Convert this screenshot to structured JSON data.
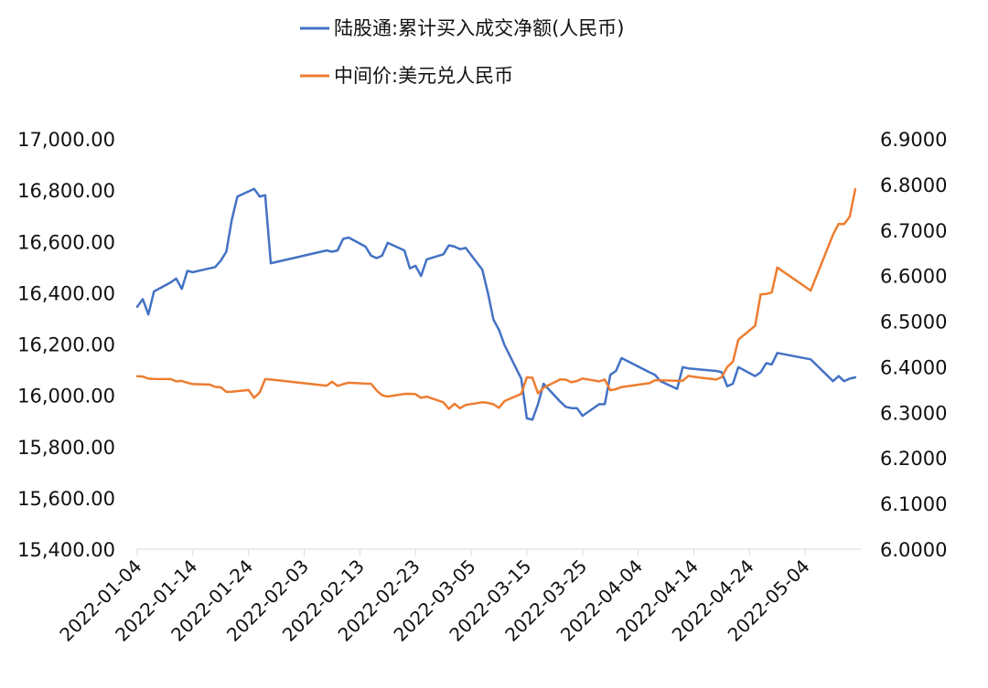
{
  "chart_data": {
    "type": "line",
    "title": "",
    "legend_position": "top",
    "grid": false,
    "x_ticks": [
      "2022-01-04",
      "2022-01-14",
      "2022-01-24",
      "2022-02-03",
      "2022-02-13",
      "2022-02-23",
      "2022-03-05",
      "2022-03-15",
      "2022-03-25",
      "2022-04-04",
      "2022-04-14",
      "2022-04-24",
      "2022-05-04"
    ],
    "x_range": [
      "2022-01-04",
      "2022-05-14"
    ],
    "y_left": {
      "range": [
        15400,
        17000
      ],
      "ticks": [
        "15,400.00",
        "15,600.00",
        "15,800.00",
        "16,000.00",
        "16,200.00",
        "16,400.00",
        "16,600.00",
        "16,800.00",
        "17,000.00"
      ]
    },
    "y_right": {
      "range": [
        6.0,
        6.9
      ],
      "ticks": [
        "6.0000",
        "6.1000",
        "6.2000",
        "6.3000",
        "6.4000",
        "6.5000",
        "6.6000",
        "6.7000",
        "6.8000",
        "6.9000"
      ]
    },
    "series": [
      {
        "name": "陆股通:累计买入成交净额(人民币)",
        "color": "#4472C4",
        "axis": "left",
        "points": [
          [
            "2022-01-04",
            16345
          ],
          [
            "2022-01-05",
            16375
          ],
          [
            "2022-01-06",
            16315
          ],
          [
            "2022-01-07",
            16405
          ],
          [
            "2022-01-10",
            16440
          ],
          [
            "2022-01-11",
            16455
          ],
          [
            "2022-01-12",
            16415
          ],
          [
            "2022-01-13",
            16485
          ],
          [
            "2022-01-14",
            16480
          ],
          [
            "2022-01-17",
            16495
          ],
          [
            "2022-01-18",
            16500
          ],
          [
            "2022-01-19",
            16525
          ],
          [
            "2022-01-20",
            16560
          ],
          [
            "2022-01-21",
            16685
          ],
          [
            "2022-01-22",
            16775
          ],
          [
            "2022-01-24",
            16795
          ],
          [
            "2022-01-25",
            16805
          ],
          [
            "2022-01-26",
            16775
          ],
          [
            "2022-01-27",
            16780
          ],
          [
            "2022-01-28",
            16515
          ],
          [
            "2022-02-07",
            16565
          ],
          [
            "2022-02-08",
            16560
          ],
          [
            "2022-02-09",
            16565
          ],
          [
            "2022-02-10",
            16610
          ],
          [
            "2022-02-11",
            16615
          ],
          [
            "2022-02-14",
            16580
          ],
          [
            "2022-02-15",
            16545
          ],
          [
            "2022-02-16",
            16535
          ],
          [
            "2022-02-17",
            16545
          ],
          [
            "2022-02-18",
            16595
          ],
          [
            "2022-02-21",
            16565
          ],
          [
            "2022-02-22",
            16495
          ],
          [
            "2022-02-23",
            16505
          ],
          [
            "2022-02-24",
            16465
          ],
          [
            "2022-02-25",
            16530
          ],
          [
            "2022-02-28",
            16550
          ],
          [
            "2022-03-01",
            16585
          ],
          [
            "2022-03-02",
            16580
          ],
          [
            "2022-03-03",
            16570
          ],
          [
            "2022-03-04",
            16575
          ],
          [
            "2022-03-07",
            16490
          ],
          [
            "2022-03-08",
            16400
          ],
          [
            "2022-03-09",
            16295
          ],
          [
            "2022-03-10",
            16255
          ],
          [
            "2022-03-11",
            16195
          ],
          [
            "2022-03-14",
            16065
          ],
          [
            "2022-03-15",
            15910
          ],
          [
            "2022-03-16",
            15905
          ],
          [
            "2022-03-17",
            15965
          ],
          [
            "2022-03-18",
            16045
          ],
          [
            "2022-03-21",
            15975
          ],
          [
            "2022-03-22",
            15955
          ],
          [
            "2022-03-23",
            15950
          ],
          [
            "2022-03-24",
            15950
          ],
          [
            "2022-03-25",
            15920
          ],
          [
            "2022-03-28",
            15965
          ],
          [
            "2022-03-29",
            15965
          ],
          [
            "2022-03-30",
            16080
          ],
          [
            "2022-03-31",
            16095
          ],
          [
            "2022-04-01",
            16145
          ],
          [
            "2022-04-06",
            16090
          ],
          [
            "2022-04-07",
            16080
          ],
          [
            "2022-04-08",
            16055
          ],
          [
            "2022-04-11",
            16025
          ],
          [
            "2022-04-12",
            16110
          ],
          [
            "2022-04-13",
            16105
          ],
          [
            "2022-04-18",
            16095
          ],
          [
            "2022-04-19",
            16090
          ],
          [
            "2022-04-20",
            16035
          ],
          [
            "2022-04-21",
            16045
          ],
          [
            "2022-04-22",
            16110
          ],
          [
            "2022-04-25",
            16075
          ],
          [
            "2022-04-26",
            16090
          ],
          [
            "2022-04-27",
            16125
          ],
          [
            "2022-04-28",
            16120
          ],
          [
            "2022-04-29",
            16165
          ],
          [
            "2022-05-05",
            16140
          ],
          [
            "2022-05-09",
            16055
          ],
          [
            "2022-05-10",
            16075
          ],
          [
            "2022-05-11",
            16055
          ],
          [
            "2022-05-12",
            16065
          ],
          [
            "2022-05-13",
            16070
          ]
        ]
      },
      {
        "name": "中间价:美元兑人民币",
        "color": "#ED7D31",
        "axis": "right",
        "points": [
          [
            "2022-01-04",
            6.3794
          ],
          [
            "2022-01-05",
            6.3786
          ],
          [
            "2022-01-06",
            6.374
          ],
          [
            "2022-01-07",
            6.3735
          ],
          [
            "2022-01-10",
            6.373
          ],
          [
            "2022-01-11",
            6.368
          ],
          [
            "2022-01-12",
            6.369
          ],
          [
            "2022-01-13",
            6.365
          ],
          [
            "2022-01-14",
            6.362
          ],
          [
            "2022-01-17",
            6.361
          ],
          [
            "2022-01-18",
            6.356
          ],
          [
            "2022-01-19",
            6.355
          ],
          [
            "2022-01-20",
            6.345
          ],
          [
            "2022-01-21",
            6.3453
          ],
          [
            "2022-01-24",
            6.349
          ],
          [
            "2022-01-25",
            6.332
          ],
          [
            "2022-01-26",
            6.3437
          ],
          [
            "2022-01-27",
            6.373
          ],
          [
            "2022-01-28",
            6.372
          ],
          [
            "2022-02-07",
            6.3586
          ],
          [
            "2022-02-08",
            6.3672
          ],
          [
            "2022-02-09",
            6.358
          ],
          [
            "2022-02-10",
            6.362
          ],
          [
            "2022-02-11",
            6.365
          ],
          [
            "2022-02-14",
            6.3631
          ],
          [
            "2022-02-15",
            6.3628
          ],
          [
            "2022-02-16",
            6.3481
          ],
          [
            "2022-02-17",
            6.3375
          ],
          [
            "2022-02-18",
            6.3347
          ],
          [
            "2022-02-21",
            6.3405
          ],
          [
            "2022-02-22",
            6.3408
          ],
          [
            "2022-02-23",
            6.34
          ],
          [
            "2022-02-24",
            6.332
          ],
          [
            "2022-02-25",
            6.3346
          ],
          [
            "2022-02-28",
            6.3222
          ],
          [
            "2022-03-01",
            6.3076
          ],
          [
            "2022-03-02",
            6.319
          ],
          [
            "2022-03-03",
            6.309
          ],
          [
            "2022-03-04",
            6.3164
          ],
          [
            "2022-03-07",
            6.3222
          ],
          [
            "2022-03-08",
            6.321
          ],
          [
            "2022-03-09",
            6.3178
          ],
          [
            "2022-03-10",
            6.3101
          ],
          [
            "2022-03-11",
            6.325
          ],
          [
            "2022-03-14",
            6.3406
          ],
          [
            "2022-03-15",
            6.3768
          ],
          [
            "2022-03-16",
            6.376
          ],
          [
            "2022-03-17",
            6.3416
          ],
          [
            "2022-03-18",
            6.354
          ],
          [
            "2022-03-21",
            6.3723
          ],
          [
            "2022-03-22",
            6.3718
          ],
          [
            "2022-03-23",
            6.366
          ],
          [
            "2022-03-24",
            6.3688
          ],
          [
            "2022-03-25",
            6.3742
          ],
          [
            "2022-03-28",
            6.3681
          ],
          [
            "2022-03-29",
            6.372
          ],
          [
            "2022-03-30",
            6.3486
          ],
          [
            "2022-03-31",
            6.3509
          ],
          [
            "2022-04-01",
            6.3556
          ],
          [
            "2022-04-06",
            6.3641
          ],
          [
            "2022-04-07",
            6.3703
          ],
          [
            "2022-04-08",
            6.3703
          ],
          [
            "2022-04-11",
            6.3693
          ],
          [
            "2022-04-12",
            6.3695
          ],
          [
            "2022-04-13",
            6.38
          ],
          [
            "2022-04-14",
            6.378
          ],
          [
            "2022-04-18",
            6.372
          ],
          [
            "2022-04-19",
            6.377
          ],
          [
            "2022-04-20",
            6.3996
          ],
          [
            "2022-04-21",
            6.4108
          ],
          [
            "2022-04-22",
            6.4596
          ],
          [
            "2022-04-25",
            6.4898
          ],
          [
            "2022-04-26",
            6.559
          ],
          [
            "2022-04-27",
            6.5598
          ],
          [
            "2022-04-28",
            6.5628
          ],
          [
            "2022-04-29",
            6.6177
          ],
          [
            "2022-05-05",
            6.5672
          ],
          [
            "2022-05-09",
            6.6899
          ],
          [
            "2022-05-10",
            6.7134
          ],
          [
            "2022-05-11",
            6.7132
          ],
          [
            "2022-05-12",
            6.7292
          ],
          [
            "2022-05-13",
            6.7898
          ]
        ]
      }
    ]
  }
}
